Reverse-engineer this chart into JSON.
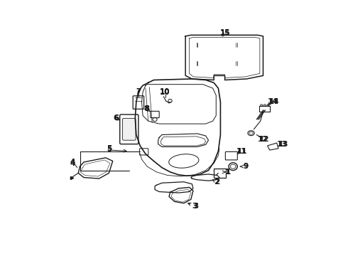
{
  "bg_color": "#ffffff",
  "line_color": "#1a1a1a",
  "label_color": "#111111",
  "fig_width": 4.9,
  "fig_height": 3.6,
  "dpi": 100
}
